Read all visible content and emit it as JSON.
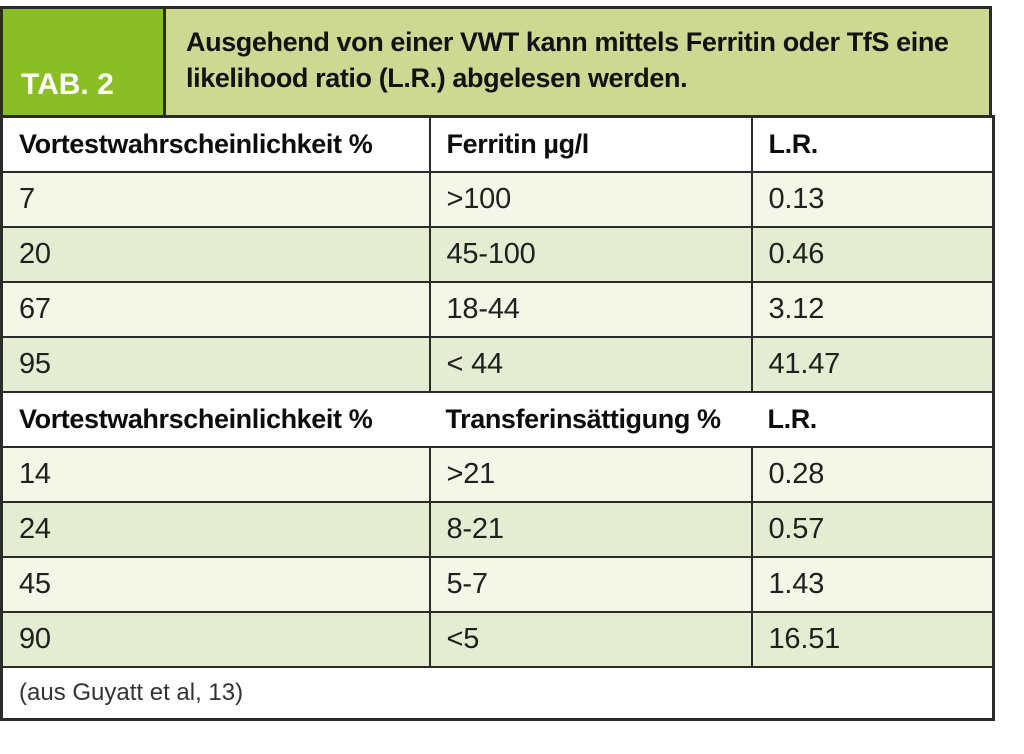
{
  "banner": {
    "tab_label": "TAB. 2",
    "title": "Ausgehend von einer VWT kann mittels Ferritin oder TfS eine likelihood ratio (L.R.) abgelesen werden."
  },
  "table": {
    "sections": [
      {
        "columns": [
          "Vortestwahrscheinlichkeit %",
          "Ferritin µg/l",
          "L.R."
        ],
        "rows": [
          [
            "7",
            ">100",
            "0.13"
          ],
          [
            "20",
            "45-100",
            "0.46"
          ],
          [
            "67",
            "18-44",
            "3.12"
          ],
          [
            "95",
            "< 44",
            "41.47"
          ]
        ]
      },
      {
        "columns": [
          "Vortestwahrscheinlichkeit %",
          "Transferinsättigung %",
          "L.R."
        ],
        "rows": [
          [
            "14",
            ">21",
            "0.28"
          ],
          [
            "24",
            "8-21",
            "0.57"
          ],
          [
            "45",
            "5-7",
            "1.43"
          ],
          [
            "90",
            "<5",
            "16.51"
          ]
        ]
      }
    ],
    "footer": "(aus Guyatt et al, 13)"
  },
  "colors": {
    "accent_green": "#8bbe24",
    "caption_bg": "#cdd893",
    "row_tint_light": "#f4f6e8",
    "row_tint_green": "#e4ecd2",
    "border": "#2b2b28"
  }
}
